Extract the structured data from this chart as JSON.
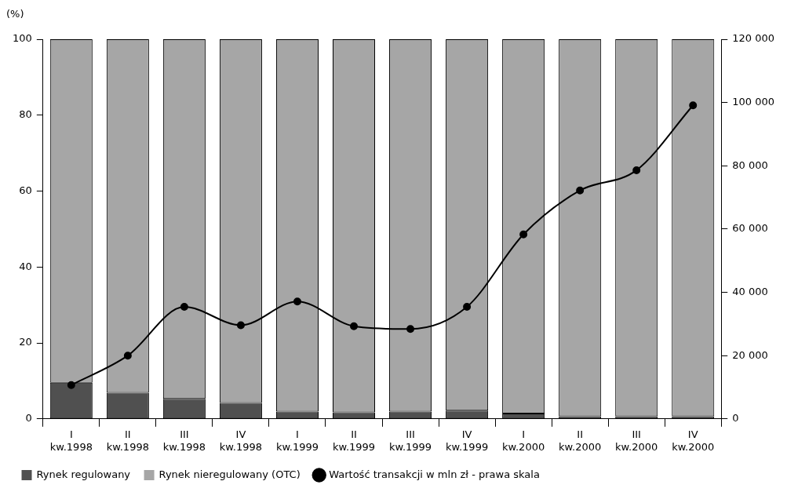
{
  "chart_data": {
    "type": "bar",
    "stacked": true,
    "ylabel": "(%)",
    "categories": [
      "I\nkw.1998",
      "II\nkw.1998",
      "III\nkw.1998",
      "IV\nkw.1998",
      "I\nkw.1999",
      "II\nkw.1999",
      "III\nkw.1999",
      "IV\nkw.1999",
      "I\nkw.2000",
      "II\nkw.2000",
      "III\nkw.2000",
      "IV\nkw.2000"
    ],
    "series": [
      {
        "name": "Rynek regulowany",
        "color": "#505050",
        "values": [
          9.5,
          6.9,
          5.3,
          4.2,
          1.9,
          1.7,
          1.9,
          2.2,
          1.4,
          0.7,
          0.7,
          0.7
        ]
      },
      {
        "name": "Rynek nieregulowany (OTC)",
        "color": "#a6a6a6",
        "values": [
          90.5,
          93.1,
          94.7,
          95.8,
          98.1,
          98.3,
          98.1,
          97.8,
          98.6,
          99.3,
          99.3,
          99.3
        ]
      },
      {
        "name": "Wartość transakcji w mln zł - prawa skala",
        "type": "line",
        "axis": "y2",
        "color": "#000000",
        "values": [
          10700,
          20000,
          35400,
          29600,
          37100,
          29300,
          28400,
          35400,
          58300,
          72200,
          78600,
          99100
        ]
      }
    ],
    "ylim": [
      0,
      100
    ],
    "yticks": [
      0,
      20,
      40,
      60,
      80,
      100
    ],
    "y2lim": [
      0,
      120000
    ],
    "y2ticks": [
      {
        "value": 0,
        "label": "0"
      },
      {
        "value": 20000,
        "label": "20 000"
      },
      {
        "value": 40000,
        "label": "40 000"
      },
      {
        "value": 60000,
        "label": "60 000"
      },
      {
        "value": 80000,
        "label": "80 000"
      },
      {
        "value": 100000,
        "label": "100 000"
      },
      {
        "value": 120000,
        "label": "120 000"
      }
    ],
    "grid": false,
    "legend": "bottom",
    "marker": "circle",
    "line_style": "solid"
  }
}
